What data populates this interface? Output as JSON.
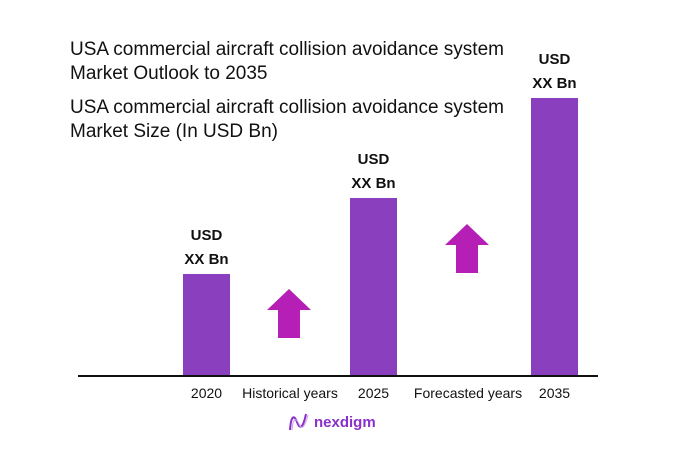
{
  "chart_data": {
    "type": "bar",
    "title": "USA commercial aircraft collision avoidance system Market Outlook to 2035",
    "subtitle": "USA commercial aircraft collision avoidance system Market Size (In USD Bn)",
    "categories": [
      "2020",
      "2025",
      "2035"
    ],
    "data_labels": [
      [
        "USD",
        "XX Bn"
      ],
      [
        "USD",
        "XX Bn"
      ],
      [
        "USD",
        "XX Bn"
      ]
    ],
    "period_labels": [
      "Historical years",
      "Forecasted years"
    ],
    "bar_color": "#8a3fbf",
    "arrow_color": "#b51fb5",
    "grid": false
  },
  "logo": {
    "text": "nexdigm"
  }
}
